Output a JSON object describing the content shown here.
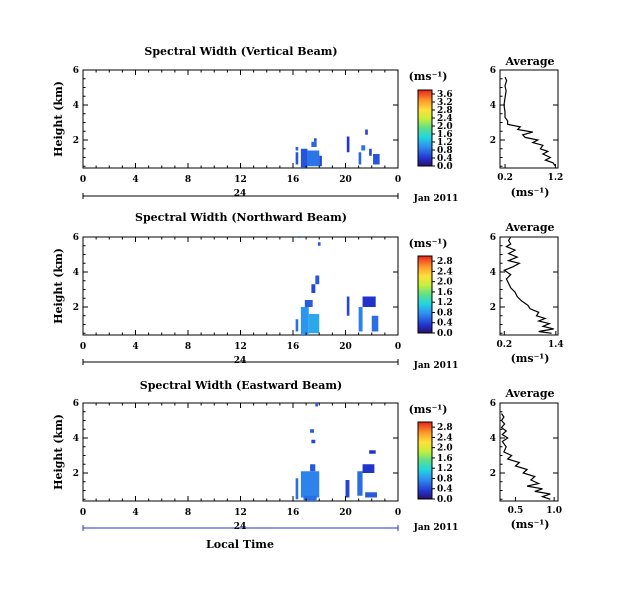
{
  "figure": {
    "xlabel": "Local Time",
    "date_label": "Jan 2011"
  },
  "chart_data": [
    {
      "type": "heatmap",
      "title": "Spectral Width (Vertical Beam)",
      "ylabel": "Height (km)",
      "x_ticks": [
        "0",
        "4",
        "8",
        "12",
        "16",
        "20",
        "0"
      ],
      "x_range": [
        0,
        24
      ],
      "day_label": "24",
      "y_ticks": [
        "2",
        "4",
        "6"
      ],
      "y_range": [
        0.4,
        6
      ],
      "colorbar": {
        "unit": "(ms⁻¹)",
        "ticks": [
          "0.0",
          "0.4",
          "0.8",
          "1.2",
          "1.6",
          "2.0",
          "2.4",
          "2.8",
          "3.2",
          "3.6"
        ],
        "range": [
          0,
          3.8
        ]
      },
      "cells": [
        {
          "x": [
            16.6,
            17.1
          ],
          "y": [
            0.4,
            1.5
          ],
          "v": 0.6
        },
        {
          "x": [
            17.1,
            18.0
          ],
          "y": [
            0.5,
            1.4
          ],
          "v": 0.8
        },
        {
          "x": [
            18.0,
            18.2
          ],
          "y": [
            0.5,
            1.1
          ],
          "v": 0.5
        },
        {
          "x": [
            17.4,
            17.8
          ],
          "y": [
            1.6,
            1.9
          ],
          "v": 0.7
        },
        {
          "x": [
            17.6,
            17.8
          ],
          "y": [
            1.9,
            2.1
          ],
          "v": 0.6
        },
        {
          "x": [
            16.2,
            16.4
          ],
          "y": [
            0.6,
            1.3
          ],
          "v": 0.6
        },
        {
          "x": [
            16.2,
            16.4
          ],
          "y": [
            1.4,
            1.6
          ],
          "v": 0.7
        },
        {
          "x": [
            20.1,
            20.3
          ],
          "y": [
            1.3,
            2.2
          ],
          "v": 0.4
        },
        {
          "x": [
            21.0,
            21.2
          ],
          "y": [
            0.6,
            1.3
          ],
          "v": 0.7
        },
        {
          "x": [
            21.2,
            21.5
          ],
          "y": [
            1.4,
            1.7
          ],
          "v": 0.8
        },
        {
          "x": [
            21.5,
            21.7
          ],
          "y": [
            2.3,
            2.6
          ],
          "v": 0.5
        },
        {
          "x": [
            22.1,
            22.6
          ],
          "y": [
            0.6,
            1.2
          ],
          "v": 0.6
        },
        {
          "x": [
            21.8,
            22.0
          ],
          "y": [
            1.1,
            1.5
          ],
          "v": 0.5
        }
      ]
    },
    {
      "type": "heatmap",
      "title": "Spectral Width (Northward Beam)",
      "ylabel": "Height (km)",
      "x_ticks": [
        "0",
        "4",
        "8",
        "12",
        "16",
        "20",
        "0"
      ],
      "x_range": [
        0,
        24
      ],
      "day_label": "24",
      "y_ticks": [
        "2",
        "4",
        "6"
      ],
      "y_range": [
        0.4,
        6
      ],
      "colorbar": {
        "unit": "(ms⁻¹)",
        "ticks": [
          "0.0",
          "0.4",
          "0.8",
          "1.2",
          "1.6",
          "2.0",
          "2.4",
          "2.8"
        ],
        "range": [
          0,
          3.0
        ]
      },
      "cells": [
        {
          "x": [
            16.6,
            17.2
          ],
          "y": [
            0.4,
            2.0
          ],
          "v": 0.8
        },
        {
          "x": [
            17.2,
            18.0
          ],
          "y": [
            0.5,
            1.6
          ],
          "v": 0.9
        },
        {
          "x": [
            16.2,
            16.4
          ],
          "y": [
            0.6,
            1.3
          ],
          "v": 0.6
        },
        {
          "x": [
            16.9,
            17.5
          ],
          "y": [
            2.0,
            2.4
          ],
          "v": 0.5
        },
        {
          "x": [
            17.4,
            17.7
          ],
          "y": [
            2.8,
            3.3
          ],
          "v": 0.4
        },
        {
          "x": [
            17.7,
            18.0
          ],
          "y": [
            3.3,
            3.8
          ],
          "v": 0.5
        },
        {
          "x": [
            17.9,
            18.1
          ],
          "y": [
            5.5,
            5.7
          ],
          "v": 0.5
        },
        {
          "x": [
            16.4,
            16.6
          ],
          "y": [
            6.0,
            6.2
          ],
          "v": 0.6
        },
        {
          "x": [
            20.1,
            20.3
          ],
          "y": [
            1.5,
            2.6
          ],
          "v": 0.4
        },
        {
          "x": [
            21.0,
            21.3
          ],
          "y": [
            0.6,
            2.0
          ],
          "v": 0.7
        },
        {
          "x": [
            21.3,
            22.3
          ],
          "y": [
            2.0,
            2.6
          ],
          "v": 0.3
        },
        {
          "x": [
            22.0,
            22.5
          ],
          "y": [
            0.6,
            1.5
          ],
          "v": 0.6
        }
      ]
    },
    {
      "type": "heatmap",
      "title": "Spectral Width (Eastward Beam)",
      "ylabel": "Height (km)",
      "x_ticks": [
        "0",
        "4",
        "8",
        "12",
        "16",
        "20",
        "0"
      ],
      "x_range": [
        0,
        24
      ],
      "day_label": "24",
      "y_ticks": [
        "2",
        "4",
        "6"
      ],
      "y_range": [
        0.4,
        6
      ],
      "colorbar": {
        "unit": "(ms⁻¹)",
        "ticks": [
          "0.0",
          "0.4",
          "0.8",
          "1.2",
          "1.6",
          "2.0",
          "2.4",
          "2.8"
        ],
        "range": [
          0,
          3.0
        ]
      },
      "cells": [
        {
          "x": [
            16.6,
            18.0
          ],
          "y": [
            0.6,
            2.1
          ],
          "v": 0.7
        },
        {
          "x": [
            16.8,
            17.8
          ],
          "y": [
            0.4,
            0.7
          ],
          "v": 0.6
        },
        {
          "x": [
            16.2,
            16.4
          ],
          "y": [
            0.5,
            1.7
          ],
          "v": 0.6
        },
        {
          "x": [
            17.3,
            17.7
          ],
          "y": [
            2.1,
            2.5
          ],
          "v": 0.5
        },
        {
          "x": [
            17.4,
            17.7
          ],
          "y": [
            3.7,
            3.9
          ],
          "v": 0.4
        },
        {
          "x": [
            17.3,
            17.6
          ],
          "y": [
            4.3,
            4.5
          ],
          "v": 0.5
        },
        {
          "x": [
            17.7,
            17.9
          ],
          "y": [
            5.8,
            6.0
          ],
          "v": 0.5
        },
        {
          "x": [
            20.0,
            20.3
          ],
          "y": [
            0.6,
            1.6
          ],
          "v": 0.4
        },
        {
          "x": [
            20.9,
            21.3
          ],
          "y": [
            0.7,
            2.1
          ],
          "v": 0.6
        },
        {
          "x": [
            21.3,
            22.2
          ],
          "y": [
            2.0,
            2.5
          ],
          "v": 0.3
        },
        {
          "x": [
            21.8,
            22.3
          ],
          "y": [
            3.1,
            3.3
          ],
          "v": 0.3
        },
        {
          "x": [
            21.5,
            22.4
          ],
          "y": [
            0.6,
            0.9
          ],
          "v": 0.5
        }
      ]
    },
    {
      "type": "line",
      "title": "Average",
      "xlabel": "(ms⁻¹)",
      "x_ticks": [
        "0.2",
        "1.2"
      ],
      "x_tick_values": [
        0.2,
        1.2
      ],
      "x_range": [
        0.1,
        1.25
      ],
      "y_ticks": [
        "2",
        "4",
        "6"
      ],
      "y_range": [
        0.4,
        6
      ],
      "profile": [
        [
          1.2,
          0.5
        ],
        [
          1.15,
          0.7
        ],
        [
          1.0,
          0.85
        ],
        [
          1.1,
          1.0
        ],
        [
          0.95,
          1.2
        ],
        [
          1.05,
          1.35
        ],
        [
          0.9,
          1.5
        ],
        [
          0.95,
          1.7
        ],
        [
          0.75,
          1.85
        ],
        [
          0.85,
          2.0
        ],
        [
          0.6,
          2.15
        ],
        [
          0.55,
          2.3
        ],
        [
          0.75,
          2.45
        ],
        [
          0.45,
          2.6
        ],
        [
          0.5,
          2.75
        ],
        [
          0.25,
          2.9
        ],
        [
          0.25,
          3.1
        ],
        [
          0.2,
          3.3
        ],
        [
          0.2,
          3.6
        ],
        [
          0.18,
          4.0
        ],
        [
          0.2,
          4.4
        ],
        [
          0.22,
          4.8
        ],
        [
          0.2,
          5.1
        ],
        [
          0.23,
          5.4
        ],
        [
          0.2,
          5.6
        ]
      ]
    },
    {
      "type": "line",
      "title": "Average",
      "xlabel": "(ms⁻¹)",
      "x_ticks": [
        "0.2",
        "1.4"
      ],
      "x_tick_values": [
        0.2,
        1.4
      ],
      "x_range": [
        0.1,
        1.45
      ],
      "y_ticks": [
        "2",
        "4",
        "6"
      ],
      "y_range": [
        0.4,
        6
      ],
      "profile": [
        [
          1.3,
          0.5
        ],
        [
          1.0,
          0.6
        ],
        [
          1.35,
          0.75
        ],
        [
          1.1,
          0.9
        ],
        [
          1.25,
          1.05
        ],
        [
          1.0,
          1.2
        ],
        [
          1.15,
          1.35
        ],
        [
          0.95,
          1.5
        ],
        [
          1.0,
          1.7
        ],
        [
          0.8,
          1.9
        ],
        [
          0.75,
          2.1
        ],
        [
          0.6,
          2.35
        ],
        [
          0.5,
          2.6
        ],
        [
          0.45,
          2.85
        ],
        [
          0.35,
          3.1
        ],
        [
          0.3,
          3.35
        ],
        [
          0.25,
          3.6
        ],
        [
          0.35,
          3.85
        ],
        [
          0.2,
          4.1
        ],
        [
          0.4,
          4.3
        ],
        [
          0.55,
          4.5
        ],
        [
          0.3,
          4.65
        ],
        [
          0.5,
          4.85
        ],
        [
          0.3,
          5.05
        ],
        [
          0.45,
          5.25
        ],
        [
          0.25,
          5.45
        ],
        [
          0.35,
          5.6
        ],
        [
          0.3,
          5.8
        ],
        [
          0.35,
          6.0
        ]
      ]
    },
    {
      "type": "line",
      "title": "Average",
      "xlabel": "(ms⁻¹)",
      "x_ticks": [
        "0.5",
        "1.0"
      ],
      "x_tick_values": [
        0.5,
        1.0
      ],
      "x_range": [
        0.3,
        1.05
      ],
      "y_ticks": [
        "2",
        "4",
        "6"
      ],
      "y_range": [
        0.4,
        6
      ],
      "profile": [
        [
          0.95,
          0.5
        ],
        [
          0.85,
          0.65
        ],
        [
          0.95,
          0.8
        ],
        [
          0.75,
          0.95
        ],
        [
          0.85,
          1.1
        ],
        [
          0.65,
          1.25
        ],
        [
          0.8,
          1.4
        ],
        [
          0.7,
          1.6
        ],
        [
          0.75,
          1.8
        ],
        [
          0.6,
          2.0
        ],
        [
          0.65,
          2.2
        ],
        [
          0.5,
          2.4
        ],
        [
          0.55,
          2.6
        ],
        [
          0.4,
          2.8
        ],
        [
          0.45,
          3.0
        ],
        [
          0.35,
          3.2
        ],
        [
          0.38,
          3.5
        ],
        [
          0.33,
          3.8
        ],
        [
          0.4,
          4.0
        ],
        [
          0.33,
          4.2
        ],
        [
          0.38,
          4.4
        ],
        [
          0.32,
          4.6
        ],
        [
          0.36,
          4.8
        ],
        [
          0.32,
          5.0
        ],
        [
          0.35,
          5.2
        ],
        [
          0.32,
          5.4
        ]
      ]
    }
  ]
}
